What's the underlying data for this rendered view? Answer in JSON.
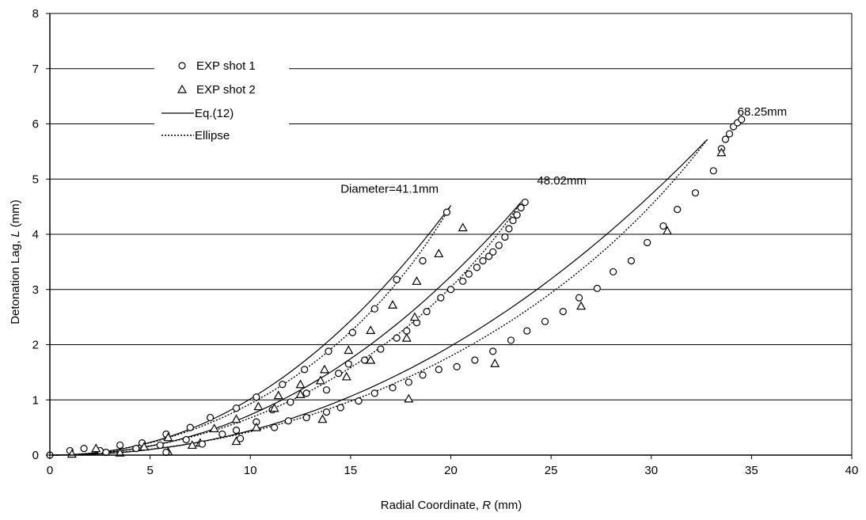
{
  "chart_data": {
    "type": "scatter",
    "xlabel": "Radial Coordinate, R (mm)",
    "ylabel": "Detonation Lag, L (mm)",
    "xlim": [
      0,
      40
    ],
    "ylim": [
      0,
      8
    ],
    "xticks": [
      0,
      5,
      10,
      15,
      20,
      25,
      30,
      35,
      40
    ],
    "yticks": [
      0,
      1,
      2,
      3,
      4,
      5,
      6,
      7,
      8
    ],
    "grid": "horizontal",
    "legend_position": "top-left",
    "legend": [
      "EXP shot 1",
      "EXP shot 2",
      "Eq.(12)",
      "Ellipse"
    ],
    "annotations": [
      {
        "text": "Diameter=41.1mm",
        "x": 14.5,
        "y": 4.75
      },
      {
        "text": "48.02mm",
        "x": 24.3,
        "y": 4.9
      },
      {
        "text": "68.25mm",
        "x": 34.3,
        "y": 6.15
      }
    ],
    "series": [
      {
        "name": "EXP shot 1",
        "group": "41.1mm",
        "marker": "circle",
        "points": [
          [
            0,
            0
          ],
          [
            1,
            0.08
          ],
          [
            1.7,
            0.12
          ],
          [
            2.5,
            0.08
          ],
          [
            3.5,
            0.18
          ],
          [
            4.6,
            0.22
          ],
          [
            5.8,
            0.38
          ],
          [
            7,
            0.5
          ],
          [
            8,
            0.68
          ],
          [
            9.3,
            0.85
          ],
          [
            10.3,
            1.05
          ],
          [
            11.6,
            1.28
          ],
          [
            12.7,
            1.55
          ],
          [
            13.9,
            1.88
          ],
          [
            15.1,
            2.22
          ],
          [
            16.2,
            2.65
          ],
          [
            17.3,
            3.18
          ],
          [
            18.6,
            3.52
          ],
          [
            19.8,
            4.4
          ]
        ]
      },
      {
        "name": "EXP shot 2",
        "group": "41.1mm",
        "marker": "triangle",
        "points": [
          [
            1.1,
            0.02
          ],
          [
            2.3,
            0.12
          ],
          [
            3.5,
            0.04
          ],
          [
            4.7,
            0.15
          ],
          [
            5.9,
            0.32
          ],
          [
            7.1,
            0.18
          ],
          [
            8.2,
            0.48
          ],
          [
            9.3,
            0.65
          ],
          [
            10.4,
            0.88
          ],
          [
            11.4,
            1.08
          ],
          [
            12.5,
            1.28
          ],
          [
            13.7,
            1.55
          ],
          [
            14.9,
            1.9
          ],
          [
            16,
            2.26
          ],
          [
            17.1,
            2.72
          ],
          [
            18.3,
            3.15
          ],
          [
            19.4,
            3.65
          ],
          [
            20.6,
            4.12
          ]
        ]
      },
      {
        "name": "EXP shot 1",
        "group": "48.02mm",
        "marker": "circle",
        "points": [
          [
            2.8,
            0.05
          ],
          [
            4.3,
            0.12
          ],
          [
            5.5,
            0.18
          ],
          [
            6.8,
            0.28
          ],
          [
            8.6,
            0.38
          ],
          [
            9.3,
            0.45
          ],
          [
            10.3,
            0.6
          ],
          [
            11.1,
            0.82
          ],
          [
            12,
            0.96
          ],
          [
            12.8,
            1.12
          ],
          [
            13.8,
            1.18
          ],
          [
            14.4,
            1.48
          ],
          [
            14.9,
            1.65
          ],
          [
            15.7,
            1.72
          ],
          [
            16.5,
            1.92
          ],
          [
            17.3,
            2.12
          ],
          [
            17.8,
            2.25
          ],
          [
            18.3,
            2.4
          ],
          [
            18.8,
            2.6
          ],
          [
            19.5,
            2.85
          ],
          [
            20,
            3
          ],
          [
            20.6,
            3.15
          ],
          [
            20.9,
            3.28
          ],
          [
            21.3,
            3.4
          ],
          [
            21.6,
            3.52
          ],
          [
            21.9,
            3.6
          ],
          [
            22.1,
            3.68
          ],
          [
            22.4,
            3.8
          ],
          [
            22.7,
            3.95
          ],
          [
            22.9,
            4.1
          ],
          [
            23.1,
            4.25
          ],
          [
            23.3,
            4.35
          ],
          [
            23.5,
            4.48
          ],
          [
            23.7,
            4.58
          ]
        ]
      },
      {
        "name": "EXP shot 2",
        "group": "48.02mm",
        "marker": "triangle",
        "points": [
          [
            5.9,
            0.06
          ],
          [
            7.5,
            0.22
          ],
          [
            9.3,
            0.25
          ],
          [
            10.3,
            0.5
          ],
          [
            11.2,
            0.85
          ],
          [
            12.5,
            1.1
          ],
          [
            13.5,
            1.35
          ],
          [
            14.8,
            1.42
          ],
          [
            16,
            1.72
          ],
          [
            17.8,
            2.12
          ],
          [
            18.2,
            2.5
          ]
        ]
      },
      {
        "name": "EXP shot 1",
        "group": "68.25mm",
        "marker": "circle",
        "points": [
          [
            5.8,
            0.05
          ],
          [
            7.6,
            0.2
          ],
          [
            9.5,
            0.3
          ],
          [
            11.2,
            0.5
          ],
          [
            11.9,
            0.62
          ],
          [
            12.8,
            0.68
          ],
          [
            13.8,
            0.78
          ],
          [
            14.5,
            0.86
          ],
          [
            15.4,
            0.98
          ],
          [
            16.2,
            1.12
          ],
          [
            17.1,
            1.22
          ],
          [
            17.9,
            1.32
          ],
          [
            18.6,
            1.45
          ],
          [
            19.4,
            1.55
          ],
          [
            20.3,
            1.6
          ],
          [
            21.2,
            1.72
          ],
          [
            22.1,
            1.88
          ],
          [
            23,
            2.08
          ],
          [
            23.8,
            2.25
          ],
          [
            24.7,
            2.42
          ],
          [
            25.6,
            2.6
          ],
          [
            26.4,
            2.85
          ],
          [
            27.3,
            3.02
          ],
          [
            28.1,
            3.32
          ],
          [
            29,
            3.52
          ],
          [
            29.8,
            3.85
          ],
          [
            30.6,
            4.15
          ],
          [
            31.3,
            4.45
          ],
          [
            32.2,
            4.75
          ],
          [
            33.1,
            5.15
          ],
          [
            33.5,
            5.55
          ],
          [
            33.7,
            5.72
          ],
          [
            33.9,
            5.82
          ],
          [
            34.1,
            5.95
          ],
          [
            34.3,
            6.02
          ],
          [
            34.5,
            6.08
          ]
        ]
      },
      {
        "name": "EXP shot 2",
        "group": "68.25mm",
        "marker": "triangle",
        "points": [
          [
            13.6,
            0.65
          ],
          [
            17.9,
            1.02
          ],
          [
            22.2,
            1.66
          ],
          [
            26.5,
            2.7
          ],
          [
            30.8,
            4.06
          ],
          [
            33.5,
            5.48
          ]
        ]
      }
    ],
    "curves": [
      {
        "name": "Eq.(12)",
        "group": "41.1mm",
        "x_max": 20.0,
        "y_max": 4.52
      },
      {
        "name": "Ellipse",
        "group": "41.1mm",
        "x_max": 20.0,
        "y_max": 4.52
      },
      {
        "name": "Eq.(12)",
        "group": "48.02mm",
        "x_max": 23.5,
        "y_max": 4.58
      },
      {
        "name": "Ellipse",
        "group": "48.02mm",
        "x_max": 23.5,
        "y_max": 4.58
      },
      {
        "name": "Eq.(12)",
        "group": "68.25mm",
        "x_max": 32.8,
        "y_max": 5.72
      },
      {
        "name": "Ellipse",
        "group": "68.25mm",
        "x_max": 32.8,
        "y_max": 5.72
      }
    ]
  }
}
